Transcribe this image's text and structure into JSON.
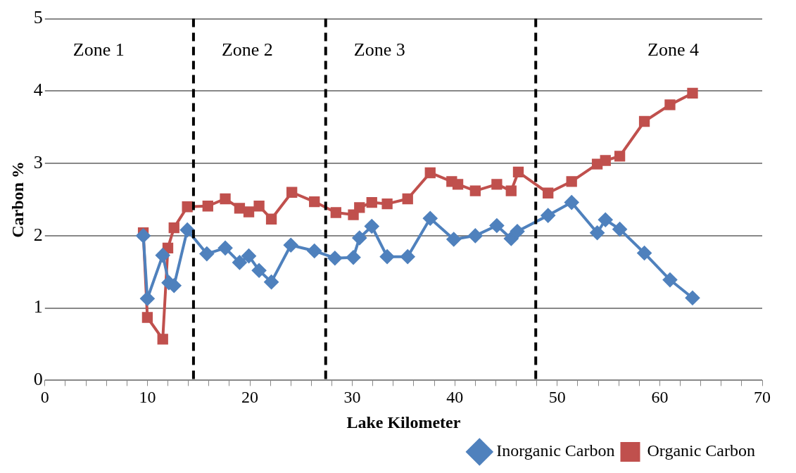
{
  "chart_data": {
    "type": "line",
    "xlabel": "Lake Kilometer",
    "ylabel": "Carbon %",
    "xlim": [
      0,
      70
    ],
    "ylim": [
      0,
      5
    ],
    "xticks": [
      0,
      {
        "value": 2,
        "label": null
      },
      {
        "value": 4,
        "label": null
      },
      {
        "value": 6,
        "label": null
      },
      {
        "value": 8,
        "label": null
      },
      10,
      {
        "value": 12,
        "label": null
      },
      {
        "value": 14,
        "label": null
      },
      {
        "value": 16,
        "label": null
      },
      {
        "value": 18,
        "label": null
      },
      20,
      {
        "value": 22,
        "label": null
      },
      {
        "value": 24,
        "label": null
      },
      {
        "value": 26,
        "label": null
      },
      {
        "value": 28,
        "label": null
      },
      30,
      {
        "value": 32,
        "label": null
      },
      {
        "value": 34,
        "label": null
      },
      {
        "value": 36,
        "label": null
      },
      {
        "value": 38,
        "label": null
      },
      40,
      {
        "value": 42,
        "label": null
      },
      {
        "value": 44,
        "label": null
      },
      {
        "value": 46,
        "label": null
      },
      {
        "value": 48,
        "label": null
      },
      50,
      {
        "value": 52,
        "label": null
      },
      {
        "value": 54,
        "label": null
      },
      {
        "value": 56,
        "label": null
      },
      {
        "value": 58,
        "label": null
      },
      60,
      {
        "value": 62,
        "label": null
      },
      {
        "value": 64,
        "label": null
      },
      {
        "value": 66,
        "label": null
      },
      {
        "value": 68,
        "label": null
      },
      70
    ],
    "yticks": [
      0,
      1,
      2,
      3,
      4,
      5
    ],
    "grid": "y",
    "legend": "bottom right",
    "line_style": "solid",
    "series": [
      {
        "name": "Organic Carbon",
        "color": "#c0504d",
        "marker": "square",
        "x": [
          9.6,
          10.0,
          11.5,
          12.0,
          12.6,
          13.9,
          15.9,
          17.6,
          19.0,
          19.9,
          20.9,
          22.1,
          24.1,
          26.3,
          28.4,
          30.1,
          30.7,
          31.9,
          33.4,
          35.4,
          37.6,
          39.7,
          40.3,
          42.0,
          44.1,
          45.5,
          46.2,
          49.1,
          51.4,
          53.9,
          54.7,
          56.1,
          58.5,
          61.0,
          63.2
        ],
        "values": [
          2.04,
          0.87,
          0.57,
          1.83,
          2.11,
          2.4,
          2.41,
          2.51,
          2.38,
          2.33,
          2.41,
          2.23,
          2.6,
          2.47,
          2.32,
          2.29,
          2.39,
          2.46,
          2.44,
          2.51,
          2.87,
          2.75,
          2.71,
          2.62,
          2.71,
          2.62,
          2.88,
          2.59,
          2.75,
          2.99,
          3.04,
          3.1,
          3.58,
          3.81,
          3.97
        ]
      },
      {
        "name": "Inorganic Carbon",
        "color": "#4f81bd",
        "marker": "diamond",
        "x": [
          9.6,
          10.0,
          11.5,
          12.1,
          12.6,
          13.9,
          15.8,
          17.6,
          19.0,
          19.9,
          20.9,
          22.1,
          24.0,
          26.3,
          28.3,
          30.1,
          30.7,
          31.9,
          33.4,
          35.4,
          37.6,
          39.9,
          42.0,
          44.1,
          45.5,
          46.1,
          49.1,
          51.4,
          53.9,
          54.7,
          56.1,
          58.5,
          61.0,
          63.2
        ],
        "values": [
          2.0,
          1.13,
          1.73,
          1.35,
          1.31,
          2.08,
          1.75,
          1.83,
          1.63,
          1.72,
          1.52,
          1.36,
          1.87,
          1.79,
          1.69,
          1.7,
          1.97,
          2.13,
          1.71,
          1.71,
          2.24,
          1.95,
          2.0,
          2.14,
          1.96,
          2.06,
          2.28,
          2.46,
          2.04,
          2.22,
          2.09,
          1.76,
          1.39,
          1.14
        ]
      }
    ],
    "ref_lines": [
      {
        "axis": "x",
        "value": 14.5,
        "color": "#000000",
        "line_style": "dashed"
      },
      {
        "axis": "x",
        "value": 27.4,
        "color": "#000000",
        "line_style": "dashed"
      },
      {
        "axis": "x",
        "value": 47.9,
        "color": "#000000",
        "line_style": "dashed"
      }
    ],
    "annotations": [
      "Zone 1",
      "Zone 2",
      "Zone 3",
      "Zone 4"
    ]
  }
}
